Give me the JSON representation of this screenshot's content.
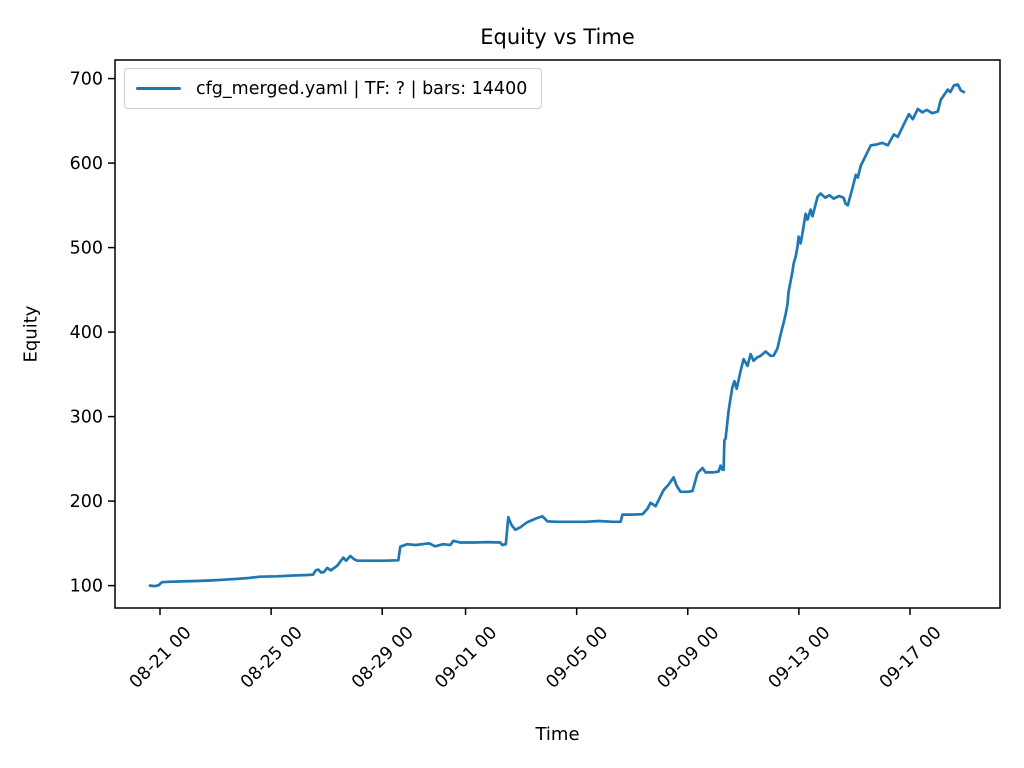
{
  "figure": {
    "background": "#ffffff",
    "text_color": "#000000",
    "spine_color": "#000000"
  },
  "chart_data": {
    "type": "line",
    "title": "Equity vs Time",
    "xlabel": "Time",
    "ylabel": "Equity",
    "grid": false,
    "legend": {
      "position": "upper left",
      "entries": [
        {
          "label": "cfg_merged.yaml | TF: ? | bars: 14400",
          "color": "#1f77b4"
        }
      ]
    },
    "x_axis": {
      "unit": "days since 08-20 00:00",
      "lim": [
        -0.62,
        31.24
      ],
      "label_rotation": 45,
      "ticks": [
        {
          "pos": 1,
          "label": "08-21 00"
        },
        {
          "pos": 5,
          "label": "08-25 00"
        },
        {
          "pos": 9,
          "label": "08-29 00"
        },
        {
          "pos": 12,
          "label": "09-01 00"
        },
        {
          "pos": 16,
          "label": "09-05 00"
        },
        {
          "pos": 20,
          "label": "09-09 00"
        },
        {
          "pos": 24,
          "label": "09-13 00"
        },
        {
          "pos": 28,
          "label": "09-17 00"
        }
      ]
    },
    "y_axis": {
      "lim": [
        73.5,
        722
      ],
      "ticks": [
        100,
        200,
        300,
        400,
        500,
        600,
        700
      ]
    },
    "series": [
      {
        "name": "cfg_merged.yaml | TF: ? | bars: 14400",
        "color": "#1f77b4",
        "points": [
          [
            0.64,
            100
          ],
          [
            0.75,
            99.5
          ],
          [
            0.85,
            99.5
          ],
          [
            0.95,
            100.5
          ],
          [
            1.07,
            104
          ],
          [
            1.3,
            104.5
          ],
          [
            1.8,
            105
          ],
          [
            2.3,
            105.5
          ],
          [
            2.8,
            106
          ],
          [
            3.3,
            107
          ],
          [
            3.8,
            108
          ],
          [
            4.2,
            109
          ],
          [
            4.6,
            110.5
          ],
          [
            5.2,
            111
          ],
          [
            5.8,
            112
          ],
          [
            6.3,
            112.5
          ],
          [
            6.51,
            113
          ],
          [
            6.6,
            118
          ],
          [
            6.7,
            119
          ],
          [
            6.8,
            115.5
          ],
          [
            6.9,
            116
          ],
          [
            7.02,
            121
          ],
          [
            7.15,
            118
          ],
          [
            7.38,
            123.5
          ],
          [
            7.6,
            133
          ],
          [
            7.7,
            129.5
          ],
          [
            7.85,
            135
          ],
          [
            8.0,
            131
          ],
          [
            8.1,
            129.5
          ],
          [
            8.6,
            129.5
          ],
          [
            9.1,
            129.5
          ],
          [
            9.58,
            130
          ],
          [
            9.65,
            146
          ],
          [
            9.9,
            149
          ],
          [
            10.2,
            148
          ],
          [
            10.55,
            149.5
          ],
          [
            10.7,
            150
          ],
          [
            10.9,
            146.5
          ],
          [
            11.2,
            149
          ],
          [
            11.45,
            148
          ],
          [
            11.56,
            153
          ],
          [
            11.8,
            151
          ],
          [
            12.3,
            151
          ],
          [
            12.8,
            151.5
          ],
          [
            13.25,
            151
          ],
          [
            13.32,
            148
          ],
          [
            13.45,
            149
          ],
          [
            13.54,
            181
          ],
          [
            13.65,
            172
          ],
          [
            13.79,
            166
          ],
          [
            13.97,
            169
          ],
          [
            14.22,
            175
          ],
          [
            14.58,
            180
          ],
          [
            14.77,
            182
          ],
          [
            14.95,
            176
          ],
          [
            15.3,
            175.5
          ],
          [
            15.8,
            175.5
          ],
          [
            16.3,
            175.5
          ],
          [
            16.8,
            176.5
          ],
          [
            17.3,
            175.5
          ],
          [
            17.58,
            175.5
          ],
          [
            17.65,
            184
          ],
          [
            18.0,
            184
          ],
          [
            18.37,
            184.5
          ],
          [
            18.55,
            191
          ],
          [
            18.66,
            198
          ],
          [
            18.84,
            194
          ],
          [
            19.13,
            213
          ],
          [
            19.3,
            219
          ],
          [
            19.49,
            228
          ],
          [
            19.6,
            218
          ],
          [
            19.74,
            211
          ],
          [
            20.0,
            211
          ],
          [
            20.17,
            212
          ],
          [
            20.35,
            233
          ],
          [
            20.53,
            239
          ],
          [
            20.64,
            234
          ],
          [
            20.9,
            234
          ],
          [
            21.11,
            235
          ],
          [
            21.18,
            242
          ],
          [
            21.25,
            237
          ],
          [
            21.29,
            237
          ],
          [
            21.32,
            272
          ],
          [
            21.36,
            274
          ],
          [
            21.43,
            295
          ],
          [
            21.47,
            307
          ],
          [
            21.54,
            322
          ],
          [
            21.6,
            334
          ],
          [
            21.68,
            342
          ],
          [
            21.76,
            333
          ],
          [
            21.9,
            354
          ],
          [
            22.01,
            368
          ],
          [
            22.15,
            360
          ],
          [
            22.26,
            374
          ],
          [
            22.37,
            366
          ],
          [
            22.5,
            370
          ],
          [
            22.62,
            372
          ],
          [
            22.8,
            377
          ],
          [
            22.98,
            372
          ],
          [
            23.09,
            372
          ],
          [
            23.23,
            381
          ],
          [
            23.34,
            397
          ],
          [
            23.45,
            411
          ],
          [
            23.52,
            421
          ],
          [
            23.59,
            433
          ],
          [
            23.63,
            448
          ],
          [
            23.7,
            460
          ],
          [
            23.77,
            472
          ],
          [
            23.81,
            481
          ],
          [
            23.88,
            489
          ],
          [
            23.95,
            501
          ],
          [
            23.99,
            513
          ],
          [
            24.06,
            505
          ],
          [
            24.13,
            517
          ],
          [
            24.24,
            540
          ],
          [
            24.31,
            533
          ],
          [
            24.42,
            545
          ],
          [
            24.49,
            537
          ],
          [
            24.67,
            560
          ],
          [
            24.78,
            564
          ],
          [
            24.95,
            559
          ],
          [
            25.1,
            562
          ],
          [
            25.25,
            558
          ],
          [
            25.45,
            561
          ],
          [
            25.61,
            559
          ],
          [
            25.68,
            552
          ],
          [
            25.76,
            550
          ],
          [
            25.94,
            572
          ],
          [
            26.05,
            586
          ],
          [
            26.12,
            583
          ],
          [
            26.23,
            597
          ],
          [
            26.41,
            609
          ],
          [
            26.59,
            621
          ],
          [
            26.8,
            622
          ],
          [
            27.0,
            624
          ],
          [
            27.2,
            621
          ],
          [
            27.42,
            634
          ],
          [
            27.56,
            631
          ],
          [
            27.78,
            646
          ],
          [
            27.96,
            658
          ],
          [
            28.1,
            652
          ],
          [
            28.28,
            664
          ],
          [
            28.45,
            660
          ],
          [
            28.6,
            663
          ],
          [
            28.8,
            659
          ],
          [
            29.0,
            661
          ],
          [
            29.11,
            675
          ],
          [
            29.36,
            687
          ],
          [
            29.45,
            684
          ],
          [
            29.58,
            692
          ],
          [
            29.72,
            693
          ],
          [
            29.83,
            686
          ],
          [
            29.94,
            684
          ]
        ]
      }
    ]
  }
}
